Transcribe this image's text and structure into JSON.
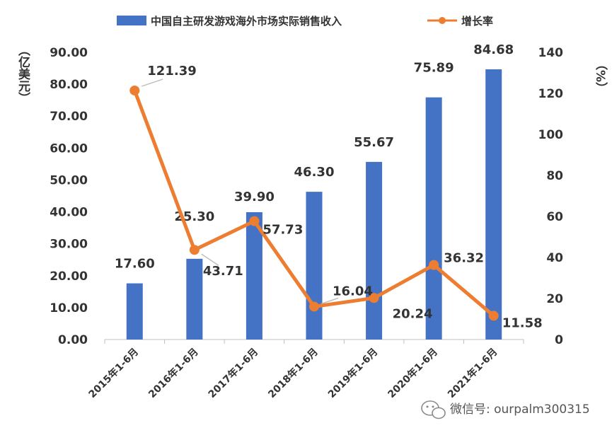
{
  "chart_data": {
    "type": "bar+line",
    "categories": [
      "2015年1-6月",
      "2016年1-6月",
      "2017年1-6月",
      "2018年1-6月",
      "2019年1-6月",
      "2020年1-6月",
      "2021年1-6月"
    ],
    "series": [
      {
        "name": "中国自主研发游戏海外市场实际销售收入",
        "type": "bar",
        "axis": "left",
        "values": [
          17.6,
          25.3,
          39.9,
          46.3,
          55.67,
          75.89,
          84.68
        ],
        "labels": [
          "17.60",
          "25.30",
          "39.90",
          "46.30",
          "55.67",
          "75.89",
          "84.68"
        ],
        "color": "#4472C4"
      },
      {
        "name": "增长率",
        "type": "line",
        "axis": "right",
        "values": [
          121.39,
          43.71,
          57.73,
          16.04,
          20.24,
          36.32,
          11.58
        ],
        "labels": [
          "121.39",
          "43.71",
          "57.73",
          "16.04",
          "20.24",
          "36.32",
          "11.58"
        ],
        "color": "#ED7D31"
      }
    ],
    "left_axis": {
      "label": "（亿美元）",
      "min": 0,
      "max": 90,
      "step": 10,
      "ticks": [
        "0.00",
        "10.00",
        "20.00",
        "30.00",
        "40.00",
        "50.00",
        "60.00",
        "70.00",
        "80.00",
        "90.00"
      ]
    },
    "right_axis": {
      "label": "（%）",
      "min": 0,
      "max": 140,
      "step": 20,
      "ticks": [
        "0",
        "20",
        "40",
        "60",
        "80",
        "100",
        "120",
        "140"
      ]
    },
    "legend_position": "top",
    "grid": false
  },
  "watermark": {
    "icon": "wechat-icon",
    "text": "微信号: ourpalm300315"
  }
}
